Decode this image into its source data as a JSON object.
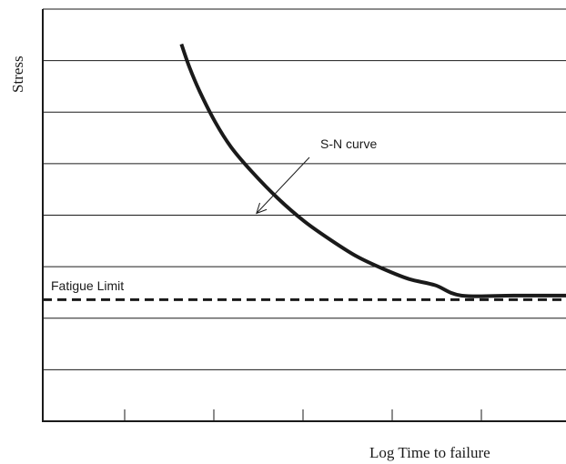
{
  "chart_data": {
    "type": "line",
    "title": "",
    "xlabel": "Log Time to failure",
    "ylabel": "Stress",
    "x_scale": "log",
    "xlim": [
      0,
      100
    ],
    "ylim": [
      0,
      100
    ],
    "x_tick_count": 5,
    "y_gridlines": 7,
    "grid": true,
    "series": [
      {
        "name": "S-N curve",
        "style": "solid",
        "color": "#1a1a1a",
        "x": [
          26.5,
          28,
          30,
          33,
          36,
          40,
          45,
          50,
          55,
          60,
          65,
          70,
          75,
          80,
          90,
          100
        ],
        "y": [
          91.5,
          86,
          80,
          72.5,
          66.5,
          60.5,
          54,
          48.5,
          44,
          40,
          37,
          34.5,
          33,
          30.5,
          30.5,
          30.5
        ]
      },
      {
        "name": "Fatigue Limit",
        "style": "dashed",
        "color": "#1a1a1a",
        "x": [
          0,
          100
        ],
        "y": [
          29.5,
          29.5
        ]
      }
    ],
    "annotations": [
      {
        "text": "S-N curve",
        "points_to": [
          40.5,
          50
        ]
      },
      {
        "text": "Fatigue Limit"
      }
    ]
  }
}
